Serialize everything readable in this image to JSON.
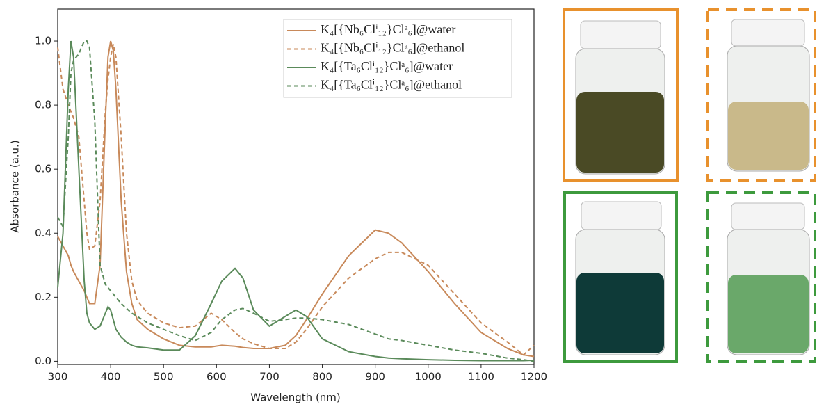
{
  "chart_data": {
    "type": "line",
    "x_label": "Wavelength (nm)",
    "y_label": "Absorbance (a.u.)",
    "x": [
      300,
      310,
      320,
      325,
      330,
      340,
      350,
      355,
      360,
      370,
      380,
      390,
      395,
      400,
      405,
      410,
      420,
      430,
      440,
      450,
      470,
      500,
      530,
      560,
      590,
      610,
      635,
      650,
      670,
      700,
      730,
      750,
      770,
      800,
      850,
      900,
      925,
      950,
      1000,
      1050,
      1100,
      1150,
      1180,
      1200
    ],
    "series": [
      {
        "name": "K₄[{Nb₆Clⁱ₁₂}Clᵃ₆]@water",
        "color": "#c8895a",
        "style": "solid",
        "values": [
          0.39,
          0.36,
          0.33,
          0.3,
          0.28,
          0.25,
          0.22,
          0.2,
          0.18,
          0.18,
          0.3,
          0.75,
          0.95,
          1.0,
          0.97,
          0.85,
          0.5,
          0.28,
          0.18,
          0.13,
          0.1,
          0.07,
          0.05,
          0.045,
          0.045,
          0.05,
          0.047,
          0.043,
          0.04,
          0.04,
          0.05,
          0.08,
          0.13,
          0.21,
          0.33,
          0.41,
          0.4,
          0.37,
          0.28,
          0.18,
          0.09,
          0.04,
          0.02,
          0.015
        ]
      },
      {
        "name": "K₄[{Nb₆Clⁱ₁₂}Clᵃ₆]@ethanol",
        "color": "#c8895a",
        "style": "dashed",
        "values": [
          0.98,
          0.85,
          0.8,
          0.78,
          0.76,
          0.7,
          0.5,
          0.4,
          0.35,
          0.36,
          0.5,
          0.78,
          0.88,
          0.95,
          0.99,
          0.95,
          0.7,
          0.4,
          0.25,
          0.19,
          0.15,
          0.12,
          0.105,
          0.11,
          0.15,
          0.13,
          0.09,
          0.07,
          0.055,
          0.04,
          0.04,
          0.06,
          0.1,
          0.17,
          0.26,
          0.32,
          0.34,
          0.34,
          0.3,
          0.21,
          0.12,
          0.06,
          0.02,
          0.05
        ]
      },
      {
        "name": "K₄[{Ta₆Clⁱ₁₂}Clᵃ₆]@water",
        "color": "#5a8a5a",
        "style": "solid",
        "values": [
          0.23,
          0.4,
          0.85,
          1.0,
          0.95,
          0.6,
          0.25,
          0.15,
          0.12,
          0.1,
          0.11,
          0.15,
          0.17,
          0.16,
          0.13,
          0.1,
          0.075,
          0.06,
          0.05,
          0.045,
          0.042,
          0.035,
          0.035,
          0.08,
          0.18,
          0.25,
          0.29,
          0.26,
          0.16,
          0.11,
          0.14,
          0.16,
          0.14,
          0.07,
          0.03,
          0.015,
          0.01,
          0.008,
          0.005,
          0.003,
          0.002,
          0.002,
          0.002,
          0.003
        ]
      },
      {
        "name": "K₄[{Ta₆Clⁱ₁₂}Clᵃ₆]@ethanol",
        "color": "#5a8a5a",
        "style": "dashed",
        "values": [
          0.45,
          0.42,
          0.7,
          0.9,
          0.94,
          0.96,
          1.0,
          1.0,
          0.98,
          0.75,
          0.3,
          0.24,
          0.23,
          0.22,
          0.21,
          0.2,
          0.18,
          0.165,
          0.15,
          0.14,
          0.12,
          0.1,
          0.08,
          0.065,
          0.09,
          0.13,
          0.16,
          0.165,
          0.15,
          0.125,
          0.13,
          0.135,
          0.135,
          0.13,
          0.115,
          0.085,
          0.07,
          0.065,
          0.05,
          0.035,
          0.025,
          0.01,
          0.005,
          0.0
        ]
      }
    ],
    "xlim": [
      300,
      1200
    ],
    "ylim": [
      -0.01,
      1.1
    ],
    "xticks": [
      300,
      400,
      500,
      600,
      700,
      800,
      900,
      1000,
      1100,
      1200
    ],
    "yticks": [
      {
        "value": 0,
        "label": "0.0"
      },
      0.2,
      0.4,
      0.6,
      0.8,
      {
        "value": 1,
        "label": "1.0"
      }
    ],
    "grid": false,
    "legend": "upper right"
  }
}
